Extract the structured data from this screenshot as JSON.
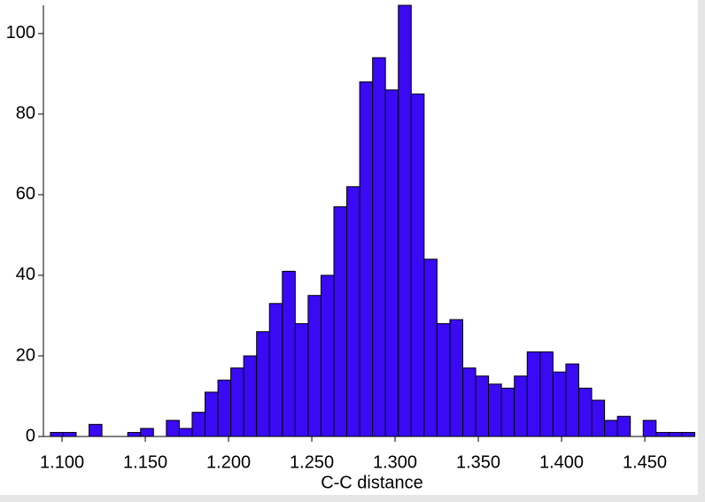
{
  "chart_data": {
    "type": "histogram",
    "x_label": "C-C distance",
    "bins": [
      1.093,
      1.10074,
      1.10848,
      1.11622,
      1.12396,
      1.1317,
      1.13944,
      1.14718,
      1.15492,
      1.16266,
      1.1704,
      1.17814,
      1.18588,
      1.19362,
      1.20136,
      1.2091,
      1.21684,
      1.22458,
      1.23232,
      1.24006,
      1.2478,
      1.25554,
      1.26328,
      1.27102,
      1.27876,
      1.2865,
      1.29424,
      1.30198,
      1.30972,
      1.31746,
      1.3252,
      1.33294,
      1.34068,
      1.34842,
      1.35616,
      1.3639,
      1.37164,
      1.37938,
      1.38712,
      1.39486,
      1.4026,
      1.41034,
      1.41808,
      1.42582,
      1.43356,
      1.4413,
      1.44904,
      1.45678,
      1.46452,
      1.47226,
      1.48
    ],
    "values": [
      1,
      1,
      0,
      3,
      0,
      0,
      1,
      2,
      0,
      4,
      2,
      6,
      11,
      14,
      17,
      20,
      26,
      33,
      41,
      28,
      35,
      40,
      57,
      62,
      88,
      94,
      86,
      107,
      85,
      44,
      28,
      29,
      17,
      15,
      13,
      12,
      15,
      21,
      21,
      16,
      18,
      12,
      9,
      4,
      5,
      0,
      4,
      1,
      1,
      1
    ],
    "color": "#3a0af5",
    "xlim": [
      1.0888,
      1.4803
    ],
    "xticks": [
      {
        "value": 1.1,
        "label": "1.100"
      },
      {
        "value": 1.15,
        "label": "1.150"
      },
      {
        "value": 1.2,
        "label": "1.200"
      },
      {
        "value": 1.25,
        "label": "1.250"
      },
      {
        "value": 1.3,
        "label": "1.300"
      },
      {
        "value": 1.35,
        "label": "1.350"
      },
      {
        "value": 1.4,
        "label": "1.400"
      },
      {
        "value": 1.45,
        "label": "1.450"
      }
    ],
    "ylim": [
      0,
      107
    ],
    "yticks": [
      0,
      20,
      40,
      60,
      80,
      100
    ]
  }
}
